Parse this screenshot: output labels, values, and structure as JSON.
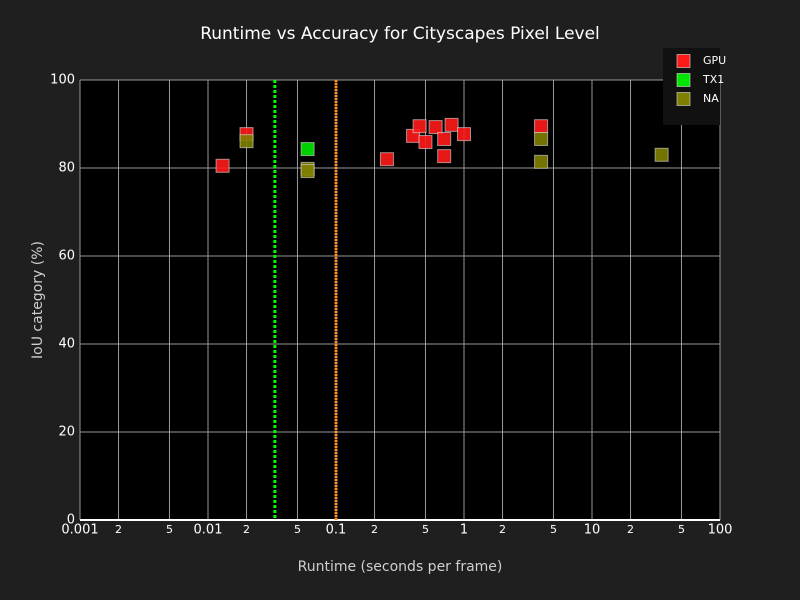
{
  "chart_data": {
    "type": "scatter",
    "title": "Runtime vs Accuracy for Cityscapes Pixel Level",
    "x_label": "Runtime (seconds per frame)",
    "y_label": "IoU category (%)",
    "xscale": "log",
    "xlim": [
      0.001,
      100
    ],
    "ylim": [
      0,
      100
    ],
    "xticks": [
      0.001,
      {
        "value": 0.002,
        "label": "2"
      },
      {
        "value": 0.005,
        "label": "5"
      },
      0.01,
      {
        "value": 0.02,
        "label": "2"
      },
      {
        "value": 0.05,
        "label": "5"
      },
      0.1,
      {
        "value": 0.2,
        "label": "2"
      },
      {
        "value": 0.5,
        "label": "5"
      },
      1,
      {
        "value": 2,
        "label": "2"
      },
      {
        "value": 5,
        "label": "5"
      },
      10,
      {
        "value": 20,
        "label": "2"
      },
      {
        "value": 50,
        "label": "5"
      },
      100
    ],
    "yticks": [
      0,
      20,
      40,
      60,
      80,
      100
    ],
    "grid": true,
    "legend": "top-right",
    "reference_lines": [
      {
        "x": 0.0333,
        "color": "#00ff00",
        "dash": "3,2"
      },
      {
        "x": 0.1,
        "color": "#ff8c1a",
        "dash": "2,1"
      }
    ],
    "series": [
      {
        "name": "GPU",
        "color": "#ff1a1a",
        "x": [
          0.013,
          0.02,
          0.25,
          0.4,
          0.45,
          0.5,
          0.6,
          0.7,
          0.7,
          0.8,
          1,
          4
        ],
        "values": [
          80.5,
          87.7,
          82,
          87.3,
          89.5,
          85.9,
          89.3,
          86.6,
          82.7,
          89.8,
          87.7,
          89.5
        ]
      },
      {
        "name": "TX1",
        "color": "#00e600",
        "x": [
          0.06
        ],
        "values": [
          84.3
        ]
      },
      {
        "name": "NA",
        "color": "#808000",
        "x": [
          0.02,
          0.06,
          0.06,
          4,
          4,
          35
        ],
        "values": [
          86.1,
          79.8,
          79.3,
          86.6,
          81.4,
          83
        ]
      }
    ]
  }
}
